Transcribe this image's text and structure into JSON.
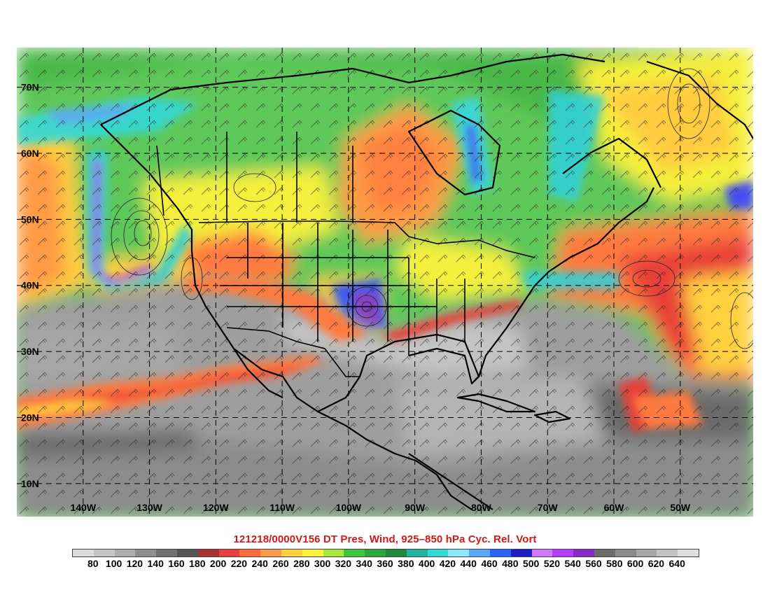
{
  "map": {
    "lat_labels": [
      "70N",
      "60N",
      "50N",
      "40N",
      "30N",
      "20N",
      "10N"
    ],
    "lon_labels": [
      "140W",
      "130W",
      "120W",
      "110W",
      "100W",
      "90W",
      "80W",
      "70W",
      "60W",
      "50W"
    ],
    "lat_range": [
      5,
      76
    ],
    "lon_range": [
      -150,
      -39
    ],
    "layers": [
      "dynamic-tropopause-pressure-fill",
      "wind-barbs",
      "cyclonic-relative-vorticity-contours",
      "coastlines",
      "political-borders",
      "graticule"
    ]
  },
  "title": "121218/0000V156 DT Pres, Wind, 925–850 hPa Cyc. Rel. Vort",
  "colorbar": {
    "labels": [
      "80",
      "100",
      "120",
      "140",
      "160",
      "180",
      "200",
      "220",
      "240",
      "260",
      "280",
      "300",
      "320",
      "340",
      "360",
      "380",
      "400",
      "420",
      "440",
      "460",
      "480",
      "500",
      "520",
      "540",
      "560",
      "580",
      "600",
      "620",
      "640"
    ],
    "colors": [
      "#dcdcdc",
      "#c4c4c4",
      "#acacac",
      "#8f8f8f",
      "#727272",
      "#555555",
      "#a83232",
      "#e8403c",
      "#ff6a3c",
      "#ff9a4a",
      "#ffcf3c",
      "#fff23c",
      "#a6e83c",
      "#3cc83c",
      "#2aa83a",
      "#1e8a3c",
      "#20b4a0",
      "#30d8d8",
      "#8ce8ff",
      "#5aa8ff",
      "#2a64ff",
      "#1e1ec8",
      "#d078ff",
      "#b43cff",
      "#8a28c8",
      "#6c6c6c",
      "#8a8a8a",
      "#a6a6a6",
      "#c2c2c2",
      "#dedede"
    ]
  }
}
